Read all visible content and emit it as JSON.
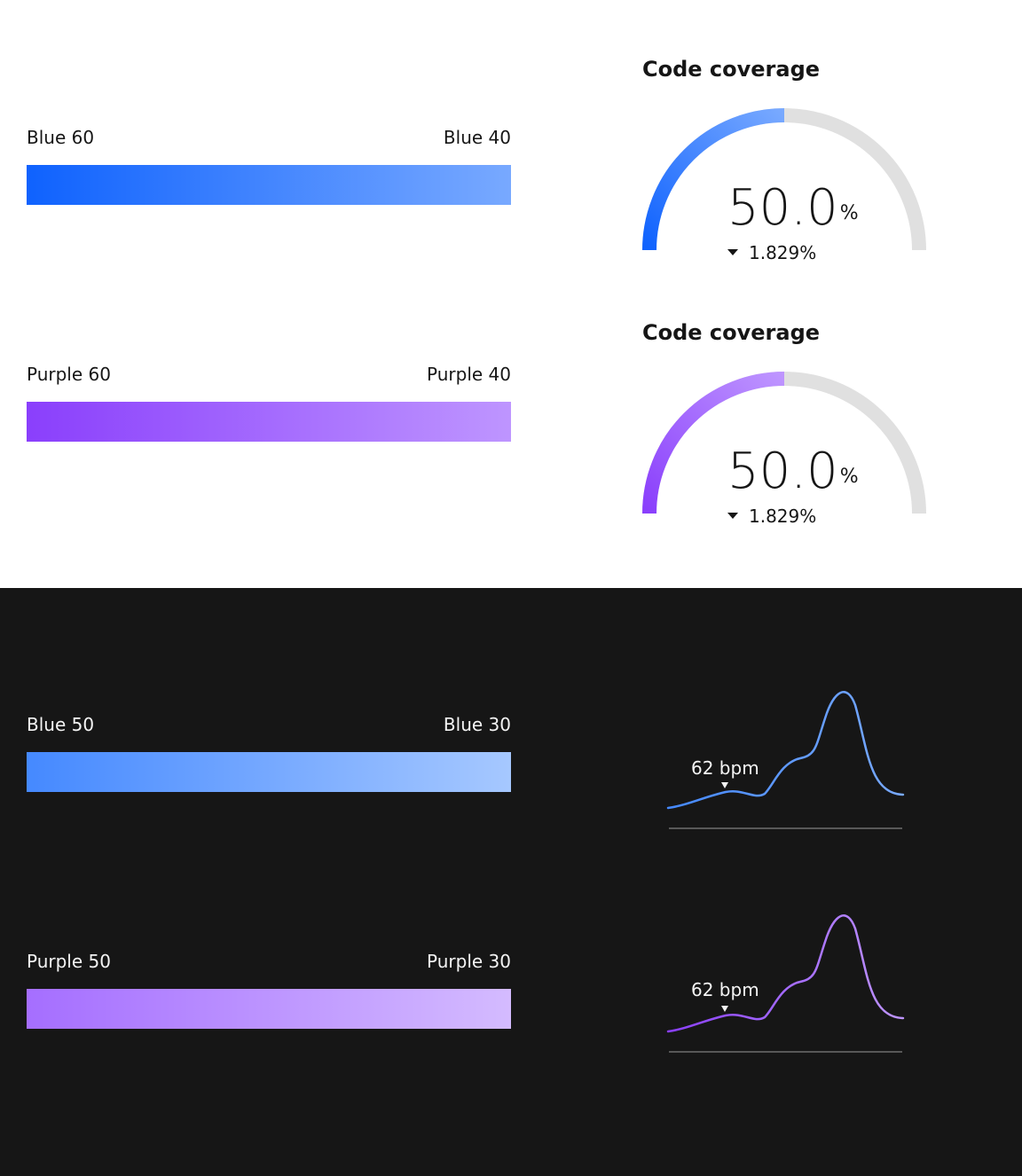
{
  "light_section": {
    "gradients": [
      {
        "start_label": "Blue 60",
        "end_label": "Blue 40",
        "start_color": "#0f62fe",
        "end_color": "#78a9ff"
      },
      {
        "start_label": "Purple 60",
        "end_label": "Purple 40",
        "start_color": "#8a3ffc",
        "end_color": "#be95ff"
      }
    ],
    "gauges": [
      {
        "title": "Code coverage",
        "value": "50.0",
        "unit": "%",
        "delta": "1.829%",
        "progress": 0.5,
        "start_color": "#0f62fe",
        "end_color": "#78a9ff",
        "track_color": "#e0e0e0"
      },
      {
        "title": "Code coverage",
        "value": "50.0",
        "unit": "%",
        "delta": "1.829%",
        "progress": 0.5,
        "start_color": "#8a3ffc",
        "end_color": "#be95ff",
        "track_color": "#e0e0e0"
      }
    ]
  },
  "dark_section": {
    "gradients": [
      {
        "start_label": "Blue 50",
        "end_label": "Blue 30",
        "start_color": "#4589ff",
        "end_color": "#a6c8ff"
      },
      {
        "start_label": "Purple 50",
        "end_label": "Purple 30",
        "start_color": "#a56eff",
        "end_color": "#d4bbff"
      }
    ],
    "sparklines": [
      {
        "label": "62 bpm",
        "start_color": "#4589ff",
        "end_color": "#78a9ff",
        "baseline_color": "#6f6f6f"
      },
      {
        "label": "62 bpm",
        "start_color": "#8a3ffc",
        "end_color": "#be95ff",
        "baseline_color": "#6f6f6f"
      }
    ]
  }
}
